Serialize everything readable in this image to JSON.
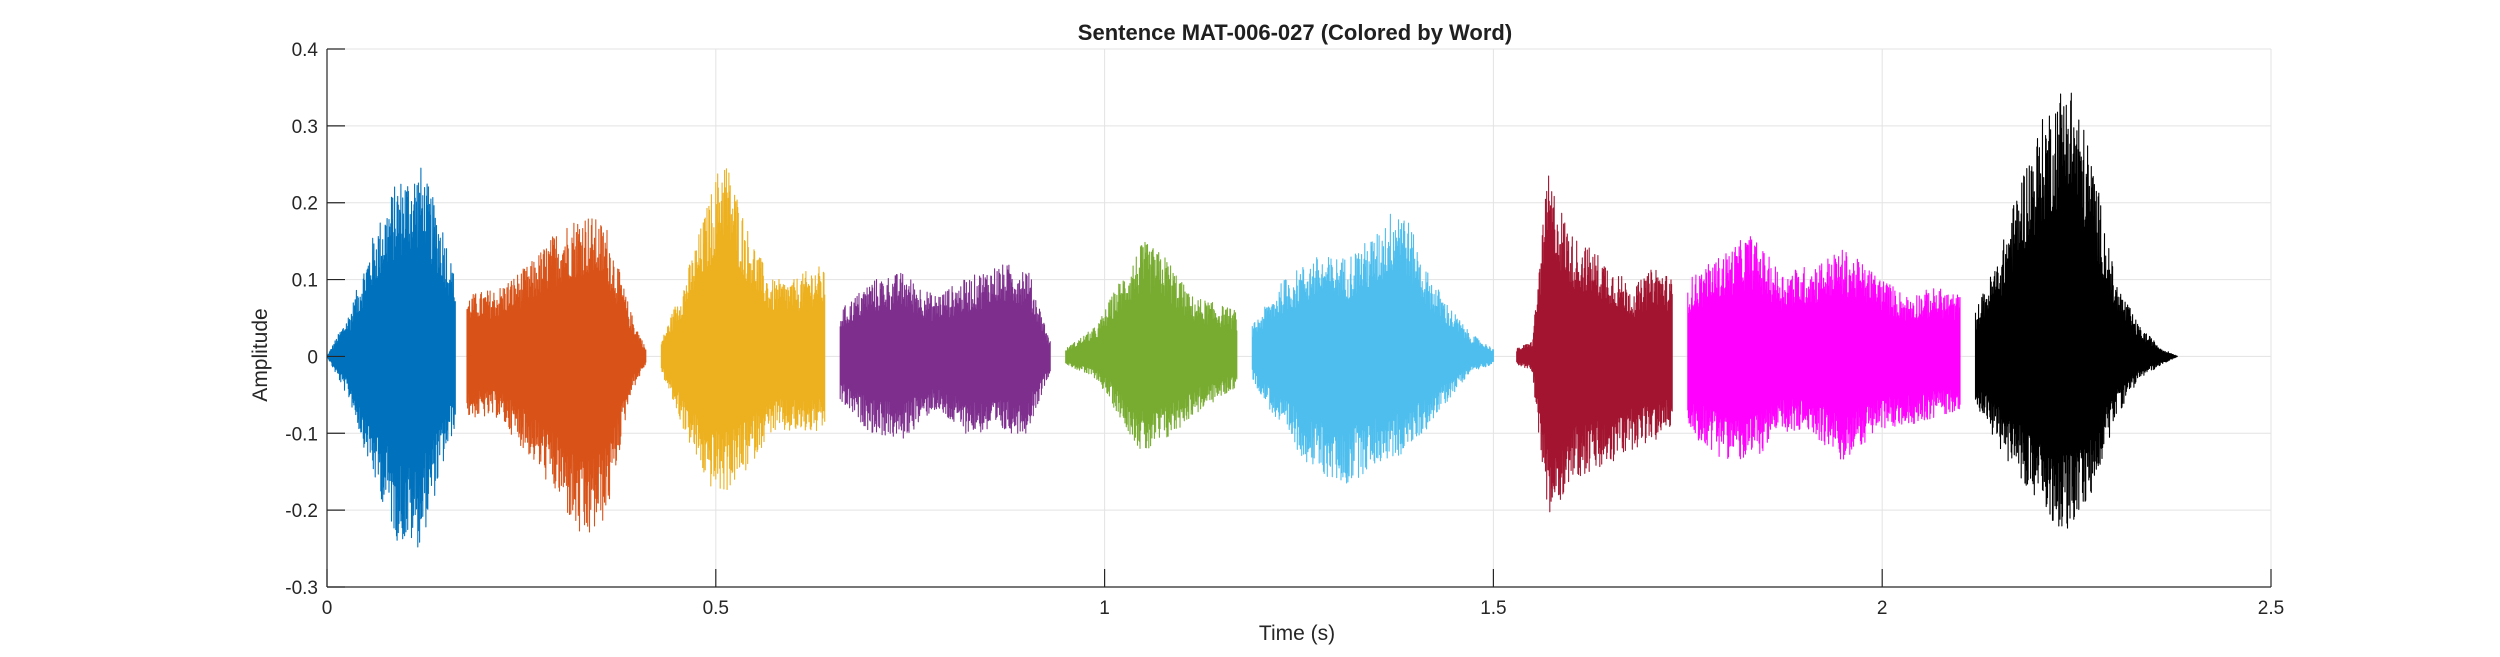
{
  "chart_data": {
    "type": "line",
    "title": "Sentence MAT-006-027 (Colored by Word)",
    "xlabel": "Time (s)",
    "ylabel": "Amplitude",
    "xlim": [
      0,
      2.5
    ],
    "ylim": [
      -0.3,
      0.4
    ],
    "xticks": [
      0,
      0.5,
      1,
      1.5,
      2,
      2.5
    ],
    "xtick_labels": [
      "0",
      "0.5",
      "1",
      "1.5",
      "2",
      "2.5"
    ],
    "yticks": [
      -0.3,
      -0.2,
      -0.1,
      0,
      0.1,
      0.2,
      0.3,
      0.4
    ],
    "ytick_labels": [
      "-0.3",
      "-0.2",
      "-0.1",
      "0",
      "0.1",
      "0.2",
      "0.3",
      "0.4"
    ],
    "grid": true,
    "series": [
      {
        "color": "#0072BD",
        "x": [
          0.0,
          0.03,
          0.06,
          0.09,
          0.12,
          0.15,
          0.165
        ],
        "y_max": [
          0.0,
          0.06,
          0.16,
          0.23,
          0.25,
          0.17,
          0.1
        ],
        "y_min": [
          0.0,
          -0.06,
          -0.16,
          -0.24,
          -0.25,
          -0.14,
          -0.09
        ]
      },
      {
        "color": "#D95319",
        "x": [
          0.18,
          0.22,
          0.26,
          0.3,
          0.33,
          0.36,
          0.39,
          0.41
        ],
        "y_max": [
          0.08,
          0.09,
          0.12,
          0.17,
          0.19,
          0.17,
          0.06,
          0.01
        ],
        "y_min": [
          -0.08,
          -0.08,
          -0.13,
          -0.19,
          -0.25,
          -0.21,
          -0.05,
          -0.01
        ]
      },
      {
        "color": "#EDB120",
        "x": [
          0.43,
          0.46,
          0.49,
          0.51,
          0.54,
          0.57,
          0.6,
          0.63,
          0.64
        ],
        "y_max": [
          0.02,
          0.1,
          0.2,
          0.27,
          0.17,
          0.1,
          0.1,
          0.12,
          0.11
        ],
        "y_min": [
          -0.02,
          -0.1,
          -0.17,
          -0.18,
          -0.15,
          -0.1,
          -0.1,
          -0.1,
          -0.1
        ]
      },
      {
        "color": "#7E2F8E",
        "x": [
          0.66,
          0.7,
          0.74,
          0.78,
          0.82,
          0.86,
          0.9,
          0.93
        ],
        "y_max": [
          0.06,
          0.1,
          0.11,
          0.08,
          0.1,
          0.12,
          0.12,
          0.02
        ],
        "y_min": [
          -0.06,
          -0.1,
          -0.11,
          -0.07,
          -0.1,
          -0.1,
          -0.1,
          -0.02
        ]
      },
      {
        "color": "#77AC30",
        "x": [
          0.95,
          0.99,
          1.02,
          1.05,
          1.08,
          1.11,
          1.14,
          1.17
        ],
        "y_max": [
          0.01,
          0.04,
          0.1,
          0.15,
          0.13,
          0.08,
          0.07,
          0.06
        ],
        "y_min": [
          -0.01,
          -0.03,
          -0.08,
          -0.13,
          -0.11,
          -0.08,
          -0.06,
          -0.04
        ]
      },
      {
        "color": "#4DBEEE",
        "x": [
          1.19,
          1.23,
          1.27,
          1.31,
          1.35,
          1.38,
          1.41,
          1.44,
          1.47,
          1.5
        ],
        "y_max": [
          0.04,
          0.1,
          0.13,
          0.13,
          0.16,
          0.21,
          0.12,
          0.07,
          0.03,
          0.01
        ],
        "y_min": [
          -0.03,
          -0.1,
          -0.15,
          -0.17,
          -0.14,
          -0.13,
          -0.1,
          -0.06,
          -0.02,
          -0.01
        ]
      },
      {
        "color": "#A2142F",
        "x": [
          1.53,
          1.55,
          1.57,
          1.6,
          1.64,
          1.68,
          1.71,
          1.73
        ],
        "y_max": [
          0.01,
          0.02,
          0.24,
          0.16,
          0.13,
          0.09,
          0.12,
          0.1
        ],
        "y_min": [
          -0.01,
          -0.02,
          -0.22,
          -0.16,
          -0.15,
          -0.12,
          -0.11,
          -0.09
        ]
      },
      {
        "color": "#FF00FF",
        "x": [
          1.75,
          1.79,
          1.83,
          1.87,
          1.91,
          1.95,
          1.99,
          2.03,
          2.07,
          2.1
        ],
        "y_max": [
          0.1,
          0.13,
          0.16,
          0.11,
          0.12,
          0.14,
          0.11,
          0.08,
          0.09,
          0.08
        ],
        "y_min": [
          -0.1,
          -0.13,
          -0.14,
          -0.1,
          -0.1,
          -0.14,
          -0.1,
          -0.09,
          -0.08,
          -0.07
        ]
      },
      {
        "color": "#000000",
        "x": [
          2.12,
          2.15,
          2.18,
          2.21,
          2.24,
          2.27,
          2.3,
          2.33,
          2.36,
          2.38
        ],
        "y_max": [
          0.06,
          0.13,
          0.24,
          0.32,
          0.37,
          0.26,
          0.1,
          0.04,
          0.01,
          0.0
        ],
        "y_min": [
          -0.06,
          -0.12,
          -0.16,
          -0.21,
          -0.23,
          -0.18,
          -0.08,
          -0.03,
          -0.01,
          0.0
        ]
      }
    ]
  }
}
